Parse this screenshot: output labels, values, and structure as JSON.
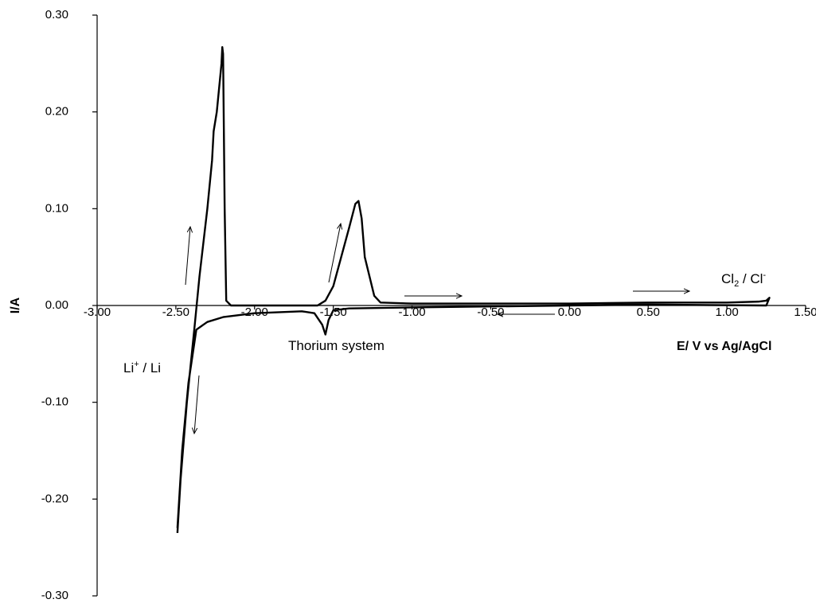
{
  "chart_data": {
    "type": "line",
    "x_label": "E/ V vs Ag/AgCl",
    "y_label": "I/A",
    "xlim": [
      -3.0,
      1.5
    ],
    "ylim": [
      -0.3,
      0.3
    ],
    "xticks": [
      {
        "value": -3.0,
        "label": "-3.00"
      },
      {
        "value": -2.5,
        "label": "-2.50"
      },
      {
        "value": -2.0,
        "label": "-2.00"
      },
      {
        "value": -1.5,
        "label": "-1.50"
      },
      {
        "value": -1.0,
        "label": "-1.00"
      },
      {
        "value": -0.5,
        "label": "-0.50"
      },
      {
        "value": 0,
        "label": "0.00"
      },
      {
        "value": 0.5,
        "label": "0.50"
      },
      {
        "value": 1.0,
        "label": "1.00"
      },
      {
        "value": 1.5,
        "label": "1.50"
      }
    ],
    "yticks": [
      {
        "value": 0.3,
        "label": "0.30"
      },
      {
        "value": 0.2,
        "label": "0.20"
      },
      {
        "value": 0.1,
        "label": "0.10"
      },
      {
        "value": 0,
        "label": "0.00"
      },
      {
        "value": -0.1,
        "label": "-0.10"
      },
      {
        "value": -0.2,
        "label": "-0.20"
      },
      {
        "value": -0.3,
        "label": "-0.30"
      }
    ],
    "series": [
      {
        "color": "#000000",
        "x": [
          -2.49,
          -2.47,
          -2.43,
          -2.38,
          -2.35,
          -2.3,
          -2.27,
          -2.26,
          -2.24,
          -2.21,
          -2.205,
          -2.2,
          -2.19,
          -2.18,
          -2.15,
          -2.0,
          -1.8,
          -1.6,
          -1.55,
          -1.5,
          -1.45,
          -1.4,
          -1.36,
          -1.34,
          -1.32,
          -1.3,
          -1.27,
          -1.24,
          -1.2,
          -1.0,
          -0.5,
          0.0,
          0.5,
          1.0,
          1.2,
          1.25,
          1.27,
          1.25,
          0.5,
          0.0,
          -0.5,
          -1.0,
          -1.4,
          -1.5,
          -1.53,
          -1.55,
          -1.57,
          -1.62,
          -1.7,
          -2.0,
          -2.2,
          -2.3,
          -2.37,
          -2.42,
          -2.46,
          -2.49
        ],
        "values": [
          -0.235,
          -0.18,
          -0.1,
          -0.02,
          0.03,
          0.1,
          0.15,
          0.18,
          0.2,
          0.25,
          0.267,
          0.26,
          0.1,
          0.005,
          0.0,
          0.0,
          0.0,
          0.0,
          0.005,
          0.02,
          0.05,
          0.08,
          0.105,
          0.108,
          0.09,
          0.05,
          0.03,
          0.01,
          0.003,
          0.002,
          0.002,
          0.002,
          0.003,
          0.003,
          0.004,
          0.005,
          0.008,
          0.0,
          0.001,
          0.0,
          -0.001,
          -0.002,
          -0.003,
          -0.005,
          -0.015,
          -0.03,
          -0.02,
          -0.008,
          -0.006,
          -0.008,
          -0.012,
          -0.017,
          -0.025,
          -0.08,
          -0.15,
          -0.23
        ]
      }
    ],
    "annotations": [
      {
        "parts": [
          "Cl",
          "2",
          " / Cl",
          "-"
        ],
        "styles": [
          "normal",
          "sub",
          "normal",
          "super"
        ]
      },
      {
        "parts": [
          "Li",
          "+",
          " / Li"
        ],
        "styles": [
          "normal",
          "super",
          "normal"
        ]
      },
      {
        "parts": [
          "Thorium system"
        ],
        "styles": [
          "normal"
        ]
      }
    ]
  }
}
